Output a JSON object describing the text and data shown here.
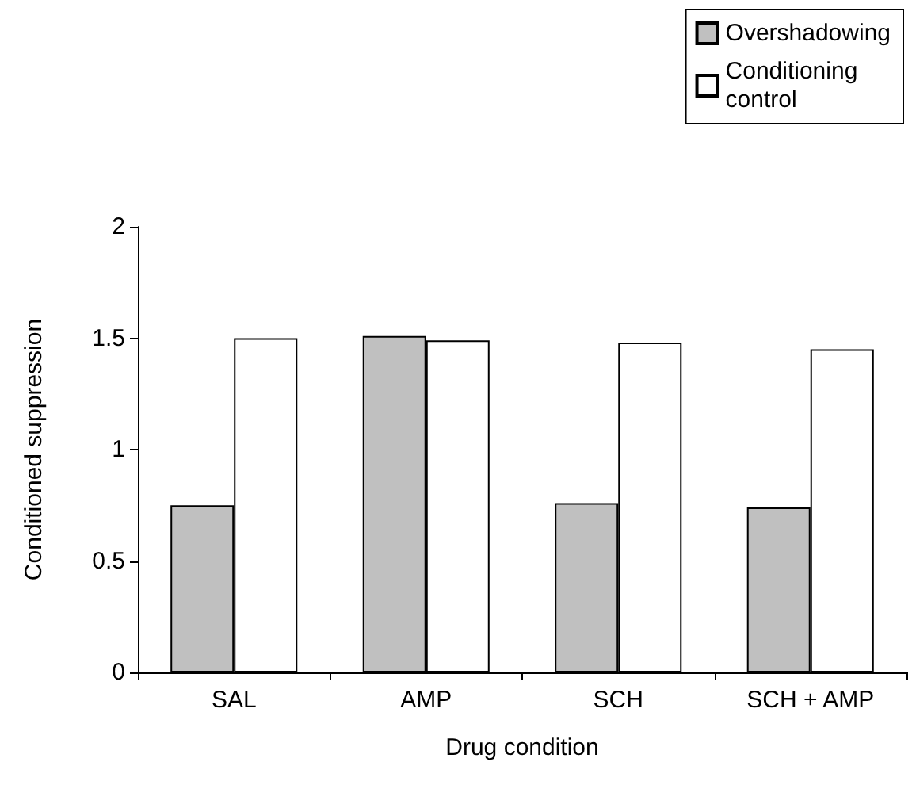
{
  "chart_data": {
    "type": "bar",
    "xlabel": "Drug condition",
    "ylabel": "Conditioned suppression",
    "categories": [
      "SAL",
      "AMP",
      "SCH",
      "SCH + AMP"
    ],
    "series": [
      {
        "name": "Overshadowing",
        "color": "#c0c0c0",
        "values": [
          0.75,
          1.51,
          0.76,
          0.74
        ]
      },
      {
        "name": "Conditioning\ncontrol",
        "color": "#ffffff",
        "values": [
          1.5,
          1.49,
          1.48,
          1.45
        ]
      }
    ],
    "ylim": [
      0,
      2
    ],
    "yticks": [
      0,
      0.5,
      1,
      1.5,
      2
    ],
    "grid": false,
    "legend": "top right"
  }
}
